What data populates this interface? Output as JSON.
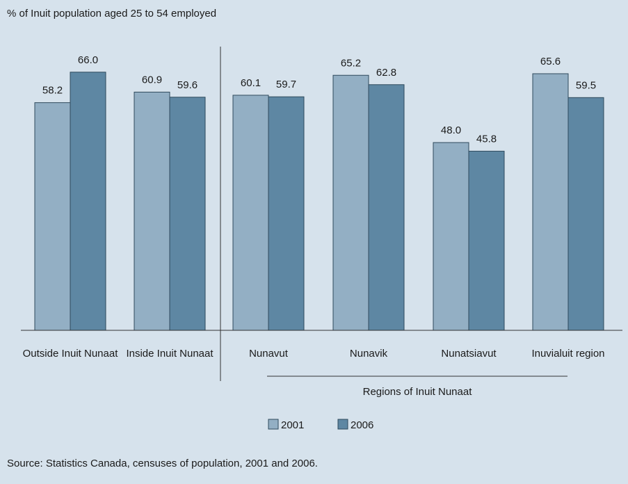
{
  "chart_data": {
    "type": "bar",
    "ylabel": "% of Inuit population aged 25 to 54 employed",
    "categories": [
      "Outside Inuit Nunaat",
      "Inside Inuit Nunaat",
      "Nunavut",
      "Nunavik",
      "Nunatsiavut",
      "Inuvialuit region"
    ],
    "series": [
      {
        "name": "2001",
        "values": [
          58.2,
          60.9,
          60.1,
          65.2,
          48.0,
          65.6
        ],
        "color": "#93afc4"
      },
      {
        "name": "2006",
        "values": [
          66.0,
          59.6,
          59.7,
          62.8,
          45.8,
          59.5
        ],
        "color": "#5e87a3"
      }
    ],
    "ylim": [
      0,
      80
    ],
    "grid": false,
    "legend": "bottom-center",
    "group_label": "Regions of Inuit Nunaat",
    "source": "Source: Statistics Canada, censuses of population, 2001 and 2006."
  }
}
